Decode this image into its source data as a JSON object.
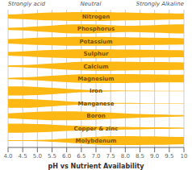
{
  "chart_data": {
    "type": "area",
    "x_label": "pH vs Nutrient Availability",
    "annotations": [
      "Strongly acid",
      "Neutral",
      "Strongly Alkaline"
    ],
    "x": [
      4.0,
      4.5,
      5.0,
      5.5,
      6.0,
      6.5,
      7.0,
      7.5,
      8.0,
      8.5,
      9.0,
      9.5,
      10.0
    ],
    "xlim": [
      4.0,
      10.0
    ],
    "xticks": [
      {
        "value": 4.0,
        "label": "4.0"
      },
      4.5,
      {
        "value": 5.0,
        "label": "5.0"
      },
      5.5,
      {
        "value": 6.0,
        "label": "6.0"
      },
      6.5,
      {
        "value": 7.0,
        "label": "7.0"
      },
      7.5,
      {
        "value": 8.0,
        "label": "8.0"
      },
      8.5,
      {
        "value": 9.0,
        "label": "9.0"
      },
      9.5,
      10
    ],
    "grid": true,
    "tick_labels": "x",
    "series": [
      {
        "name": "Nitrogen",
        "color": "#FDB813",
        "values": [
          0.45,
          0.6,
          0.75,
          0.88,
          0.96,
          1.0,
          1.0,
          0.96,
          0.88,
          0.82,
          0.76,
          0.7,
          0.65
        ]
      },
      {
        "name": "Phosphorus",
        "color": "#FDB813",
        "values": [
          0.25,
          0.35,
          0.55,
          0.75,
          0.95,
          1.0,
          0.95,
          0.85,
          0.7,
          0.75,
          0.85,
          0.95,
          1.0
        ]
      },
      {
        "name": "Potassium",
        "color": "#FDB813",
        "values": [
          0.5,
          0.65,
          0.8,
          0.9,
          0.97,
          1.0,
          1.0,
          0.97,
          0.9,
          0.85,
          0.8,
          0.75,
          0.7
        ]
      },
      {
        "name": "Sulphur",
        "color": "#FDB813",
        "values": [
          0.4,
          0.55,
          0.72,
          0.85,
          0.95,
          1.0,
          1.0,
          0.97,
          0.92,
          0.88,
          0.84,
          0.8,
          0.76
        ]
      },
      {
        "name": "Calcium",
        "color": "#FDB813",
        "values": [
          0.15,
          0.25,
          0.4,
          0.6,
          0.8,
          0.95,
          1.0,
          1.0,
          0.97,
          0.93,
          0.9,
          0.87,
          0.84
        ]
      },
      {
        "name": "Magnesium",
        "color": "#FDB813",
        "values": [
          0.15,
          0.25,
          0.42,
          0.62,
          0.82,
          0.96,
          1.0,
          1.0,
          0.97,
          0.93,
          0.9,
          0.87,
          0.84
        ]
      },
      {
        "name": "Iron",
        "color": "#FDB813",
        "values": [
          1.0,
          1.0,
          0.9,
          0.72,
          0.5,
          0.3,
          0.18,
          0.12,
          0.08,
          0.06,
          0.05,
          0.04,
          0.04
        ]
      },
      {
        "name": "Manganese",
        "color": "#FDB813",
        "values": [
          1.0,
          1.0,
          0.88,
          0.68,
          0.46,
          0.28,
          0.17,
          0.11,
          0.08,
          0.06,
          0.05,
          0.04,
          0.04
        ]
      },
      {
        "name": "Boron",
        "color": "#FDB813",
        "values": [
          0.55,
          0.72,
          0.88,
          1.0,
          1.0,
          0.95,
          0.85,
          0.7,
          0.55,
          0.4,
          0.3,
          0.22,
          0.16
        ]
      },
      {
        "name": "Copper & zinc",
        "color": "#FDB813",
        "values": [
          1.0,
          1.0,
          0.92,
          0.78,
          0.62,
          0.5,
          0.4,
          0.33,
          0.28,
          0.23,
          0.18,
          0.14,
          0.1
        ]
      },
      {
        "name": "Molybdenum",
        "color": "#FDB813",
        "values": [
          0.08,
          0.1,
          0.15,
          0.25,
          0.45,
          0.68,
          0.88,
          1.0,
          1.0,
          0.97,
          0.93,
          0.88,
          0.82
        ]
      }
    ]
  }
}
